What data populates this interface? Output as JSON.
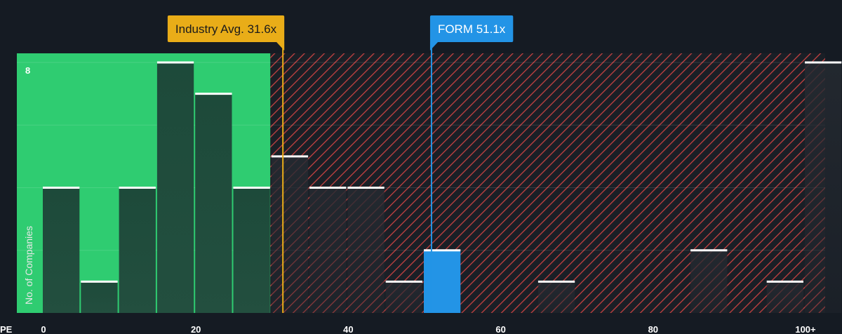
{
  "chart_data": {
    "type": "bar",
    "xlabel": "PE",
    "ylabel": "No. of Companies",
    "x_ticks": [
      {
        "value": 0,
        "label": "0"
      },
      {
        "value": 20,
        "label": "20"
      },
      {
        "value": 40,
        "label": "40"
      },
      {
        "value": 60,
        "label": "60"
      },
      {
        "value": 80,
        "label": "80"
      },
      {
        "value": 100,
        "label": "100+"
      }
    ],
    "y_ticks": [
      {
        "value": 8,
        "label": "8"
      }
    ],
    "xlim": [
      0,
      102.5
    ],
    "ylim": [
      0,
      8.3
    ],
    "bin_width": 5,
    "bins": [
      {
        "start": 0,
        "count": 4
      },
      {
        "start": 5,
        "count": 1
      },
      {
        "start": 10,
        "count": 4
      },
      {
        "start": 15,
        "count": 8
      },
      {
        "start": 20,
        "count": 7
      },
      {
        "start": 25,
        "count": 4
      },
      {
        "start": 30,
        "count": 5
      },
      {
        "start": 35,
        "count": 4
      },
      {
        "start": 40,
        "count": 4
      },
      {
        "start": 45,
        "count": 1
      },
      {
        "start": 50,
        "count": 2
      },
      {
        "start": 55,
        "count": 0
      },
      {
        "start": 60,
        "count": 0
      },
      {
        "start": 65,
        "count": 1
      },
      {
        "start": 70,
        "count": 0
      },
      {
        "start": 75,
        "count": 0
      },
      {
        "start": 80,
        "count": 0
      },
      {
        "start": 85,
        "count": 2
      },
      {
        "start": 90,
        "count": 0
      },
      {
        "start": 95,
        "count": 1
      },
      {
        "start": 100,
        "count": 8
      }
    ],
    "industry_avg": {
      "label": "Industry Avg. 31.6x",
      "value": 31.6
    },
    "company": {
      "label": "FORM 51.1x",
      "value": 51.1
    },
    "fair_range_end": 30,
    "colors": {
      "background": "#151b23",
      "fair_zone": "#2fcc71",
      "bar_in_fair": "#1f4d3c",
      "bar_outside": "#1c2128",
      "bar_cap": "#ffffff",
      "hatch": "#d64545",
      "industry": "#e9ad18",
      "company": "#2394e6"
    }
  }
}
